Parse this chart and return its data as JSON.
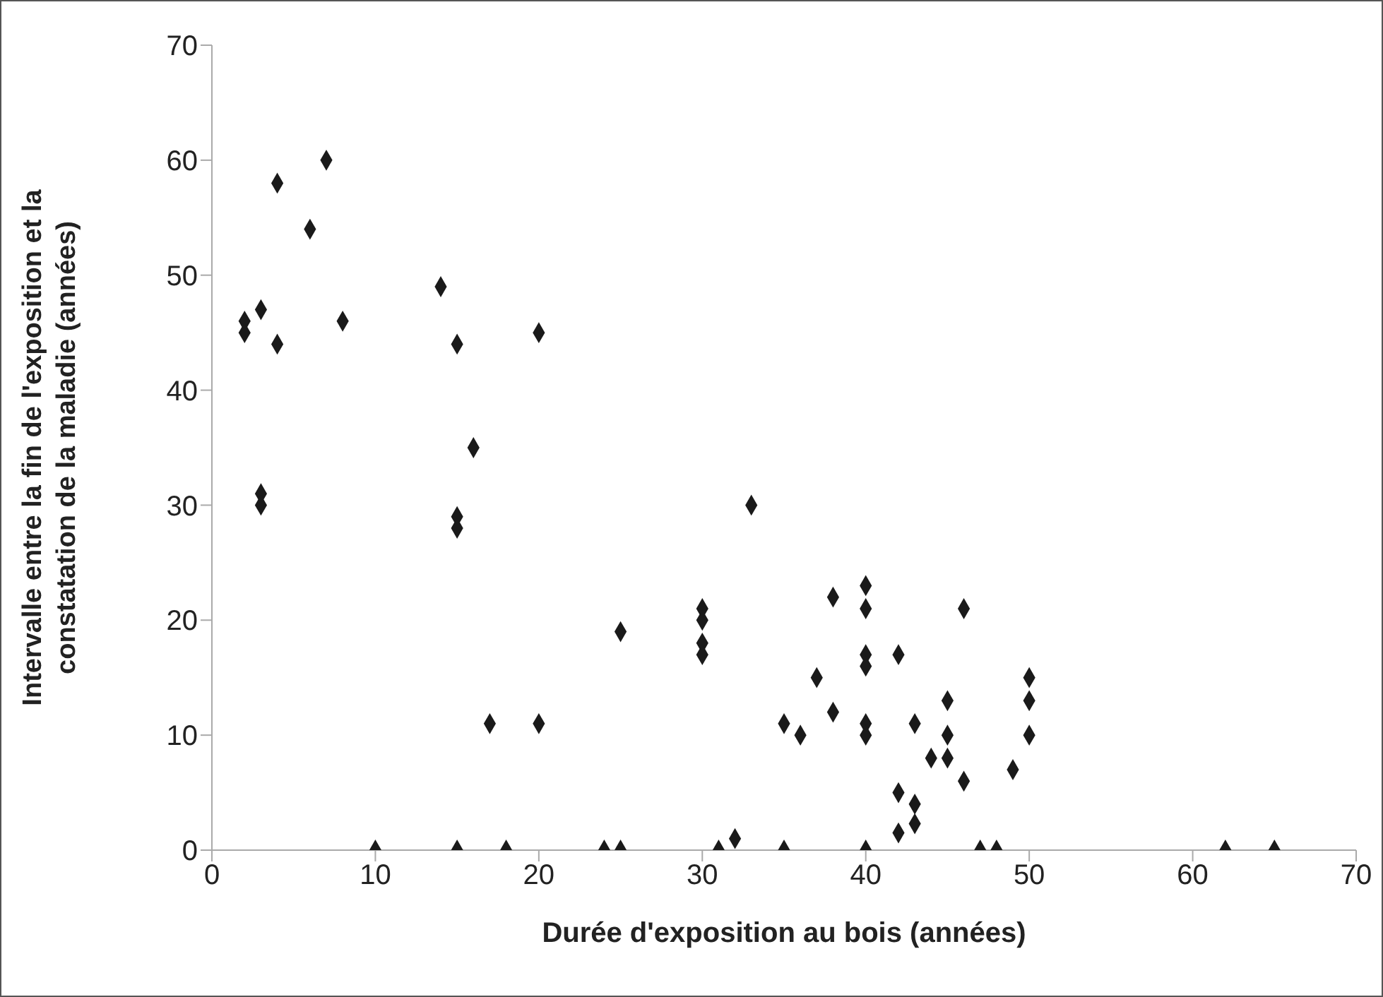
{
  "chart_data": {
    "type": "scatter",
    "xlabel": "Durée d'exposition au bois (années)",
    "ylabel": "Intervalle entre la fin de l'exposition et la constatation de la maladie (années)",
    "x": [
      2,
      2,
      3,
      4,
      7,
      6,
      4,
      8,
      3,
      3,
      14,
      15,
      20,
      16,
      15,
      15,
      17,
      20,
      10,
      15,
      18,
      24,
      25,
      25,
      30,
      30,
      30,
      30,
      33,
      31,
      32,
      35,
      35,
      36,
      37,
      38,
      38,
      40,
      40,
      40,
      40,
      40,
      40,
      40,
      42,
      42,
      42,
      43,
      43,
      43,
      44,
      45,
      45,
      45,
      46,
      46,
      47,
      48,
      49,
      50,
      50,
      50,
      62,
      65
    ],
    "values": [
      46,
      45,
      47,
      58,
      60,
      54,
      44,
      46,
      31,
      30,
      49,
      44,
      45,
      35,
      29,
      28,
      11,
      11,
      0,
      0,
      0,
      0,
      0,
      19,
      21,
      20,
      18,
      17,
      30,
      0,
      1,
      0,
      11,
      10,
      15,
      22,
      12,
      23,
      21,
      17,
      16,
      11,
      10,
      0,
      17,
      5,
      1.5,
      11,
      4,
      2.3,
      8,
      13,
      10,
      8,
      21,
      6,
      0,
      0,
      7,
      15,
      13,
      10,
      0,
      0
    ],
    "color": "#1a1a1a",
    "marker": "diamond",
    "xlim": [
      0,
      70
    ],
    "ylim": [
      0,
      70
    ],
    "xticks": [
      0,
      10,
      20,
      30,
      40,
      50,
      60,
      70
    ],
    "yticks": [
      0,
      10,
      20,
      30,
      40,
      50,
      60,
      70
    ],
    "grid": false
  }
}
